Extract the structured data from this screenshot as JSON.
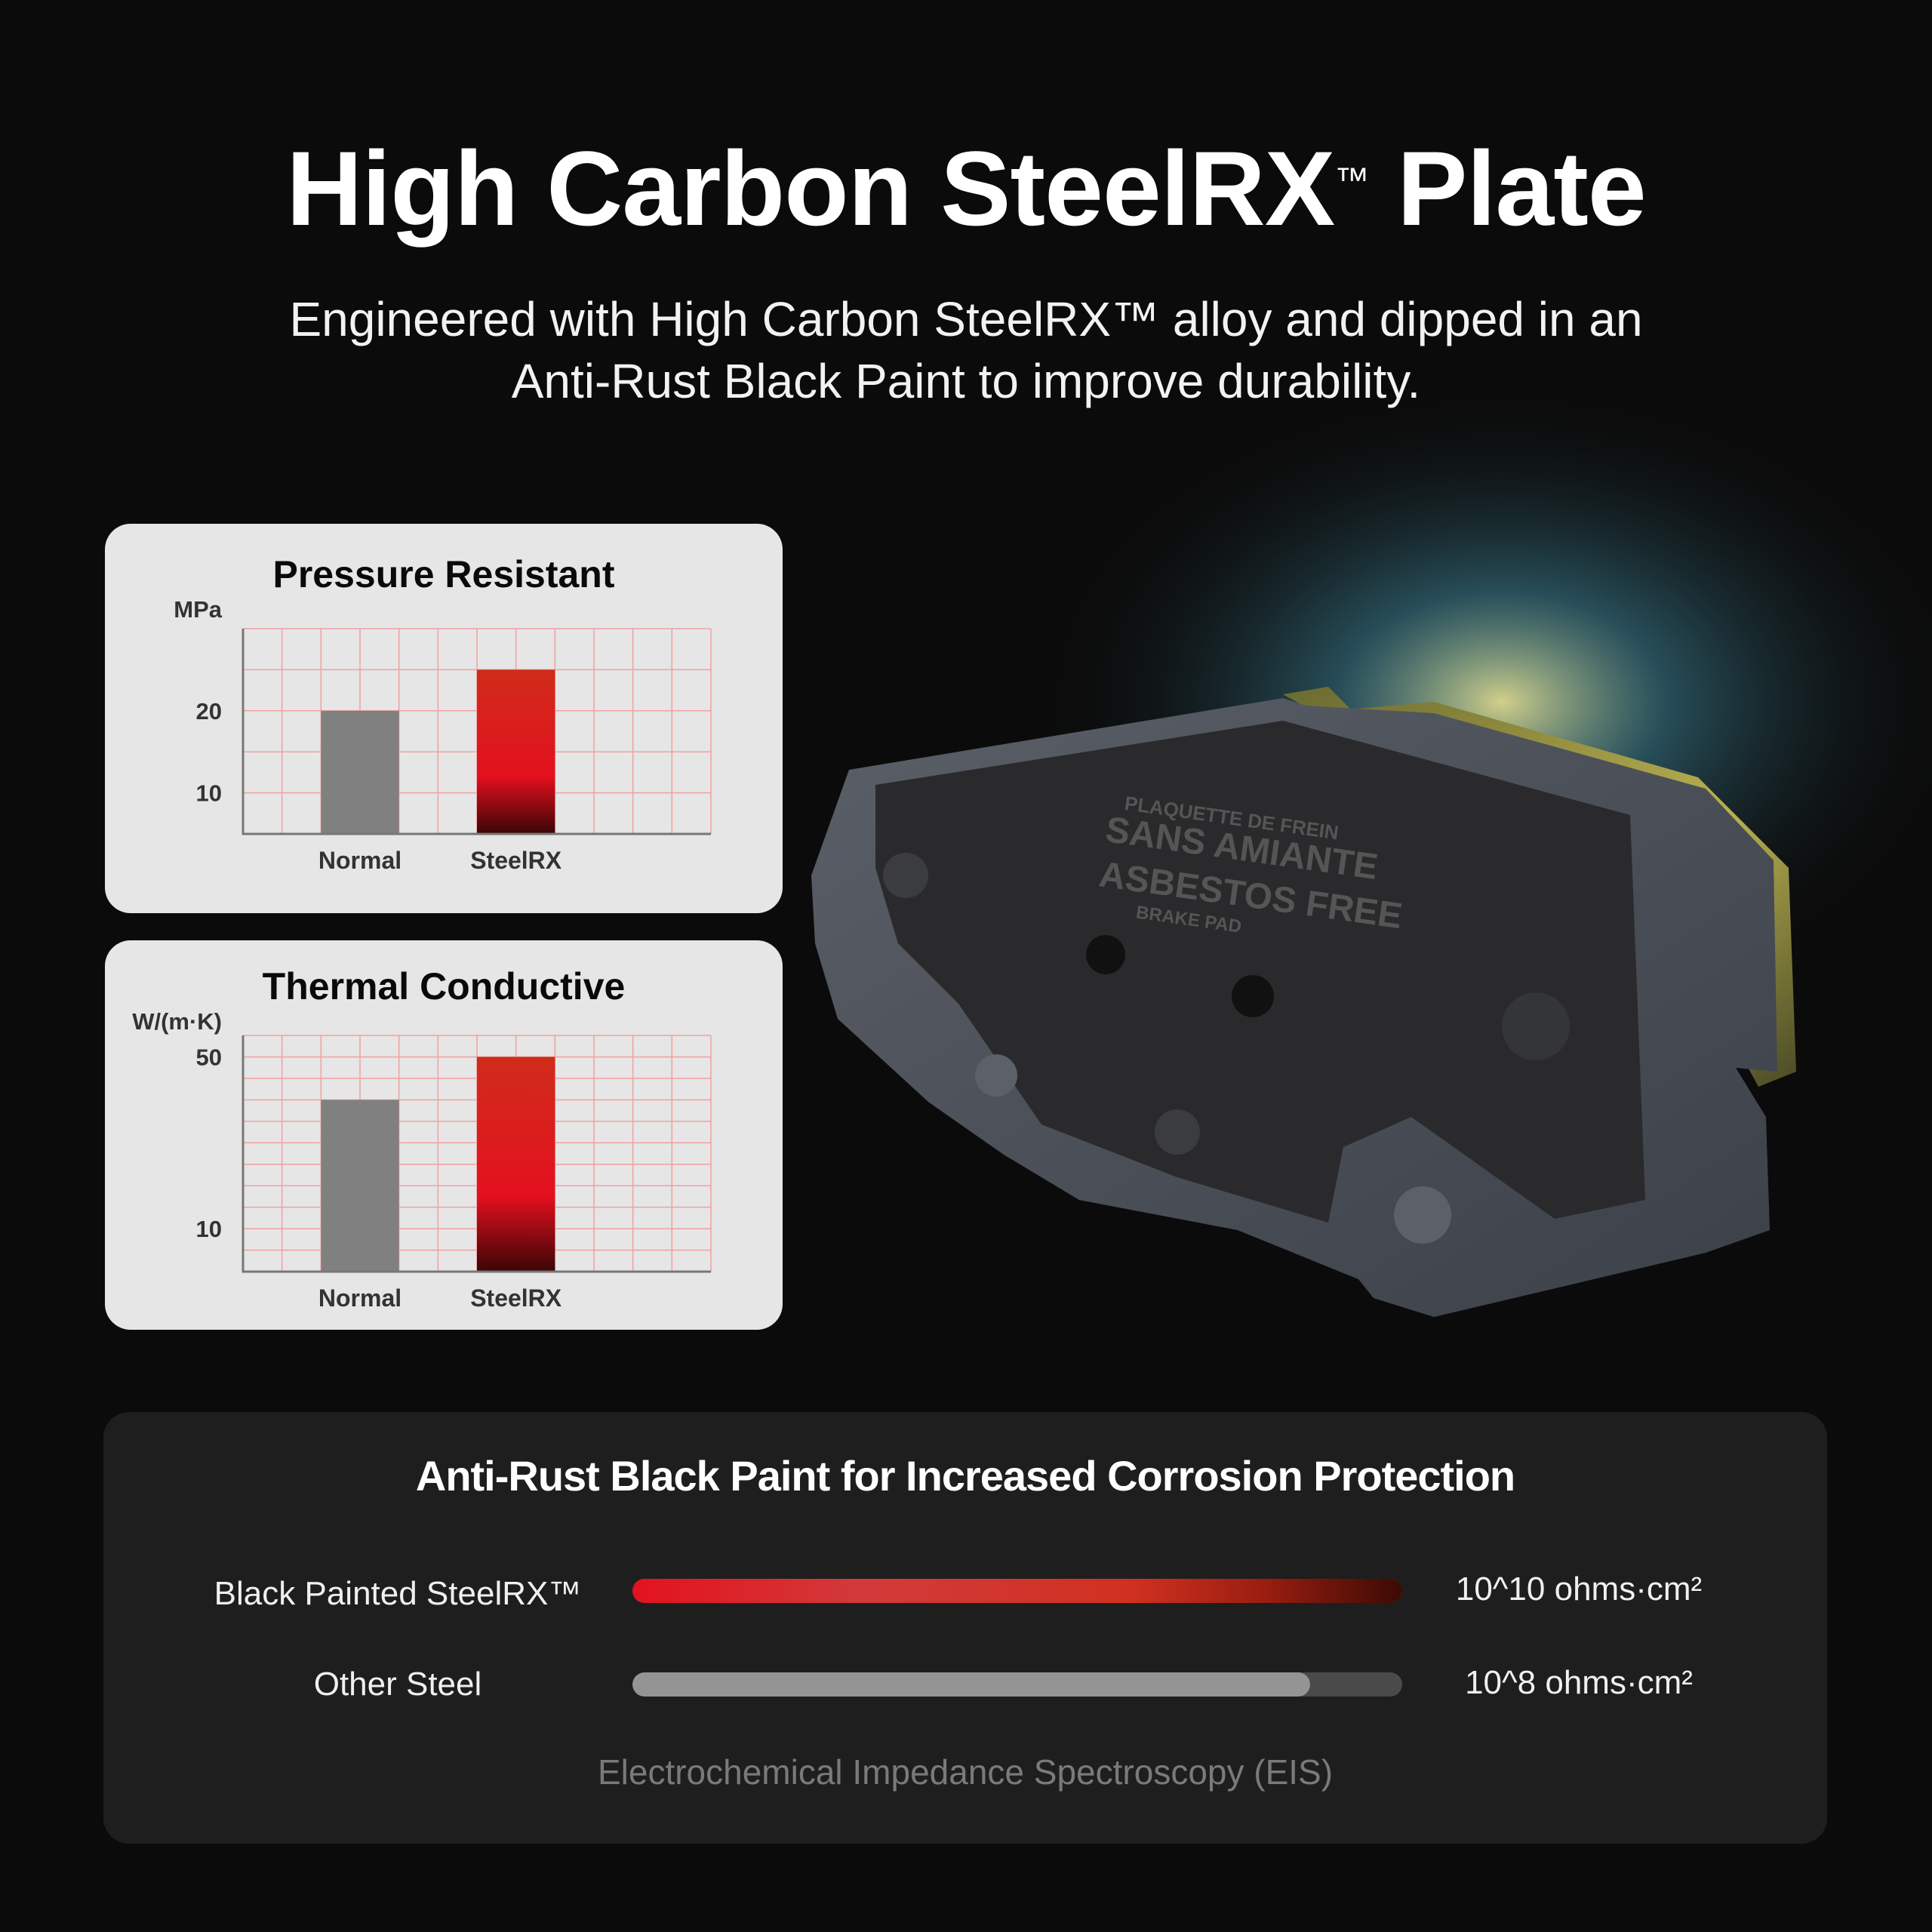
{
  "header": {
    "title_main": "High Carbon SteelRX",
    "title_tm": "™",
    "title_end": " Plate",
    "subtitle_line1": "Engineered with High Carbon SteelRX™ alloy and dipped in an",
    "subtitle_line2": "Anti-Rust Black Paint to improve durability."
  },
  "product_image": {
    "lettering": [
      "PLAQUETTE DE FREIN",
      "SANS AMIANTE",
      "ASBESTOS FREE",
      "BRAKE PAD"
    ]
  },
  "chart_data": [
    {
      "type": "bar",
      "title": "Pressure Resistant",
      "ylabel": "MPa",
      "categories": [
        "Normal",
        "SteelRX"
      ],
      "values": [
        20,
        25
      ],
      "ylim": [
        5,
        30
      ],
      "yticks": [
        10,
        20
      ],
      "grid": true,
      "colors": [
        "#808080",
        "#d02c1a"
      ]
    },
    {
      "type": "bar",
      "title": "Thermal Conductive",
      "ylabel": "W/(m·K)",
      "categories": [
        "Normal",
        "SteelRX"
      ],
      "values": [
        40,
        50
      ],
      "ylim": [
        0,
        55
      ],
      "yticks": [
        10,
        50
      ],
      "grid": true,
      "colors": [
        "#808080",
        "#d02c1a"
      ]
    }
  ],
  "corrosion": {
    "title": "Anti-Rust Black Paint for Increased Corrosion Protection",
    "rows": [
      {
        "label": "Black Painted SteelRX™",
        "value": "10^10 ohms·cm²",
        "level": 1.0,
        "color": "#e3121e"
      },
      {
        "label": "Other Steel",
        "value": "10^8 ohms·cm²",
        "level": 0.88,
        "color": "#949494"
      }
    ],
    "footer": "Electrochemical Impedance Spectroscopy (EIS)"
  }
}
